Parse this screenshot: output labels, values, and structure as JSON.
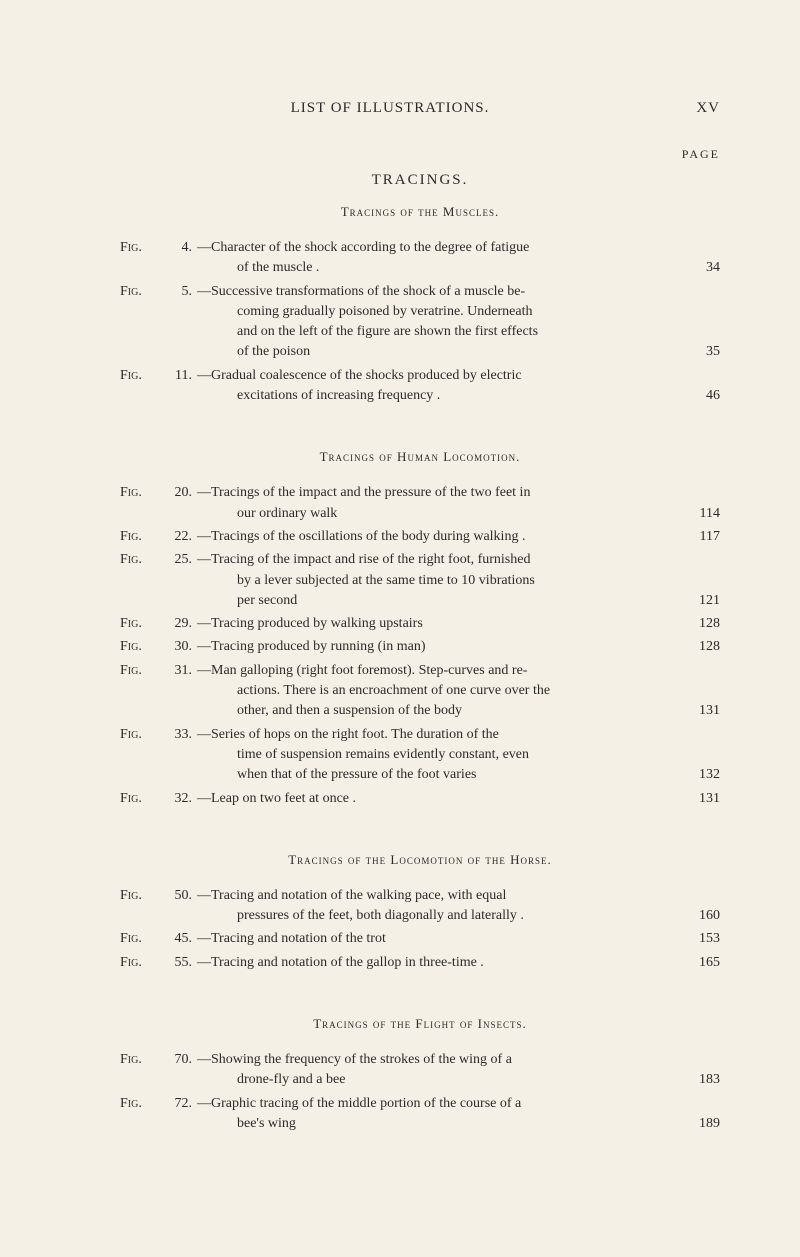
{
  "header": {
    "title": "LIST OF ILLUSTRATIONS.",
    "pageNumeral": "XV",
    "pageLabel": "PAGE"
  },
  "colors": {
    "background": "#f5f0e6",
    "text": "#2a2a2a"
  },
  "typography": {
    "family": "Times New Roman",
    "body_fontsize": 14,
    "header_fontsize": 15,
    "subsection_fontsize": 13
  },
  "sections": [
    {
      "title": "TRACINGS.",
      "subtitle": "Tracings of the Muscles.",
      "entries": [
        {
          "figLabel": "Fig.",
          "figNum": "4.",
          "lines": [
            "—Character of the shock according to the degree of fatigue",
            "of the muscle ."
          ],
          "page": "34"
        },
        {
          "figLabel": "Fig.",
          "figNum": "5.",
          "lines": [
            "—Successive transformations of the shock of a muscle be-",
            "coming gradually poisoned by veratrine. Underneath",
            "and on the left of the figure are shown the first effects",
            "of the poison"
          ],
          "page": "35"
        },
        {
          "figLabel": "Fig.",
          "figNum": "11.",
          "lines": [
            "—Gradual coalescence of the shocks produced by electric",
            "excitations of increasing frequency ."
          ],
          "page": "46"
        }
      ]
    },
    {
      "subtitle": "Tracings of Human Locomotion.",
      "entries": [
        {
          "figLabel": "Fig.",
          "figNum": "20.",
          "lines": [
            "—Tracings of the impact and the pressure of the two feet in",
            "our ordinary walk"
          ],
          "page": "114"
        },
        {
          "figLabel": "Fig.",
          "figNum": "22.",
          "lines": [
            "—Tracings of the oscillations of the body during walking ."
          ],
          "page": "117"
        },
        {
          "figLabel": "Fig.",
          "figNum": "25.",
          "lines": [
            "—Tracing of the impact and rise of the right foot, furnished",
            "by a lever subjected at the same time to 10 vibrations",
            "per second"
          ],
          "page": "121"
        },
        {
          "figLabel": "Fig.",
          "figNum": "29.",
          "lines": [
            "—Tracing produced by walking upstairs"
          ],
          "page": "128"
        },
        {
          "figLabel": "Fig.",
          "figNum": "30.",
          "lines": [
            "—Tracing produced by running (in man)"
          ],
          "page": "128"
        },
        {
          "figLabel": "Fig.",
          "figNum": "31.",
          "lines": [
            "—Man galloping (right foot foremost). Step-curves and re-",
            "actions. There is an encroachment of one curve over the",
            "other, and then a suspension of the body"
          ],
          "page": "131"
        },
        {
          "figLabel": "Fig.",
          "figNum": "33.",
          "lines": [
            "—Series of hops on the right foot. The duration of the",
            "time of suspension remains evidently constant, even",
            "when that of the pressure of the foot varies"
          ],
          "page": "132"
        },
        {
          "figLabel": "Fig.",
          "figNum": "32.",
          "lines": [
            "—Leap on two feet at once ."
          ],
          "page": "131"
        }
      ]
    },
    {
      "subtitle": "Tracings of the Locomotion of the Horse.",
      "entries": [
        {
          "figLabel": "Fig.",
          "figNum": "50.",
          "lines": [
            "—Tracing and notation of the walking pace, with equal",
            "pressures of the feet, both diagonally and laterally ."
          ],
          "page": "160"
        },
        {
          "figLabel": "Fig.",
          "figNum": "45.",
          "lines": [
            "—Tracing and notation of the trot"
          ],
          "page": "153"
        },
        {
          "figLabel": "Fig.",
          "figNum": "55.",
          "lines": [
            "—Tracing and notation of the gallop in three-time ."
          ],
          "page": "165"
        }
      ]
    },
    {
      "subtitle": "Tracings of the Flight of Insects.",
      "entries": [
        {
          "figLabel": "Fig.",
          "figNum": "70.",
          "lines": [
            "—Showing the frequency of the strokes of the wing of a",
            "drone-fly and a bee"
          ],
          "page": "183"
        },
        {
          "figLabel": "Fig.",
          "figNum": "72.",
          "lines": [
            "—Graphic tracing of the middle portion of the course of a",
            "bee's wing"
          ],
          "page": "189"
        }
      ]
    }
  ]
}
